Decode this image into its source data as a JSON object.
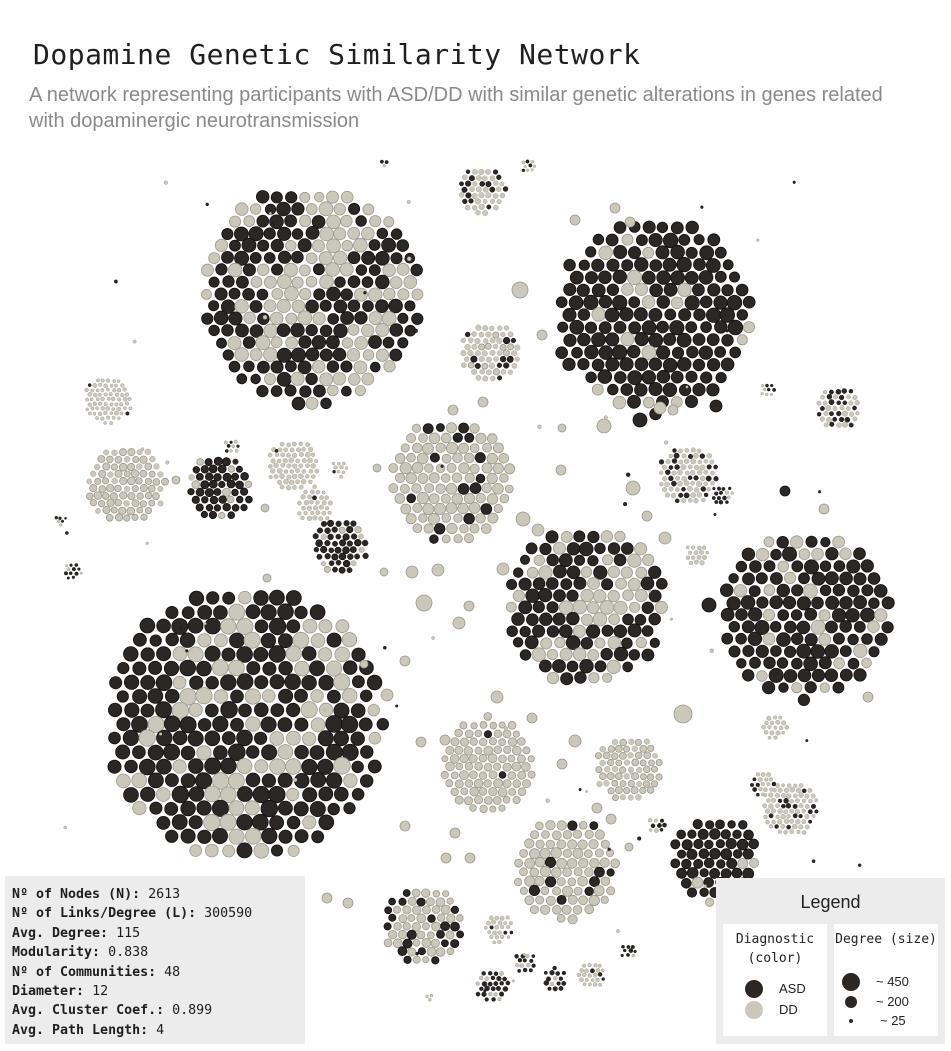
{
  "title": "Dopamine Genetic Similarity Network",
  "subtitle": "A network representing participants with ASD/DD with similar genetic alterations in genes related with dopaminergic neurotransmission",
  "colors": {
    "asd": "#2b2724",
    "dd": "#cbc8bb",
    "asd_stroke": "#111111",
    "dd_stroke": "#9c9a8c"
  },
  "stats": [
    {
      "label": "Nº of Nodes (N):",
      "value": "2613"
    },
    {
      "label": "Nº of Links/Degree (L):",
      "value": "300590"
    },
    {
      "label": "Avg. Degree:",
      "value": "115"
    },
    {
      "label": "Modularity:",
      "value": "0.838"
    },
    {
      "label": "Nº of Communities:",
      "value": "48"
    },
    {
      "label": "Diameter:",
      "value": "12"
    },
    {
      "label": "Avg. Cluster Coef.:",
      "value": "0.899"
    },
    {
      "label": "Avg. Path Length:",
      "value": "4"
    }
  ],
  "legend": {
    "title": "Legend",
    "color_heading": "Diagnostic (color)",
    "size_heading": "Degree (size)",
    "color_items": [
      {
        "label": "ASD",
        "class": "asd"
      },
      {
        "label": "DD",
        "class": "dd"
      }
    ],
    "size_items": [
      {
        "label": "~ 450",
        "degree": 450
      },
      {
        "label": "~ 200",
        "degree": 200
      },
      {
        "label": "~ 25",
        "degree": 25
      }
    ]
  }
}
